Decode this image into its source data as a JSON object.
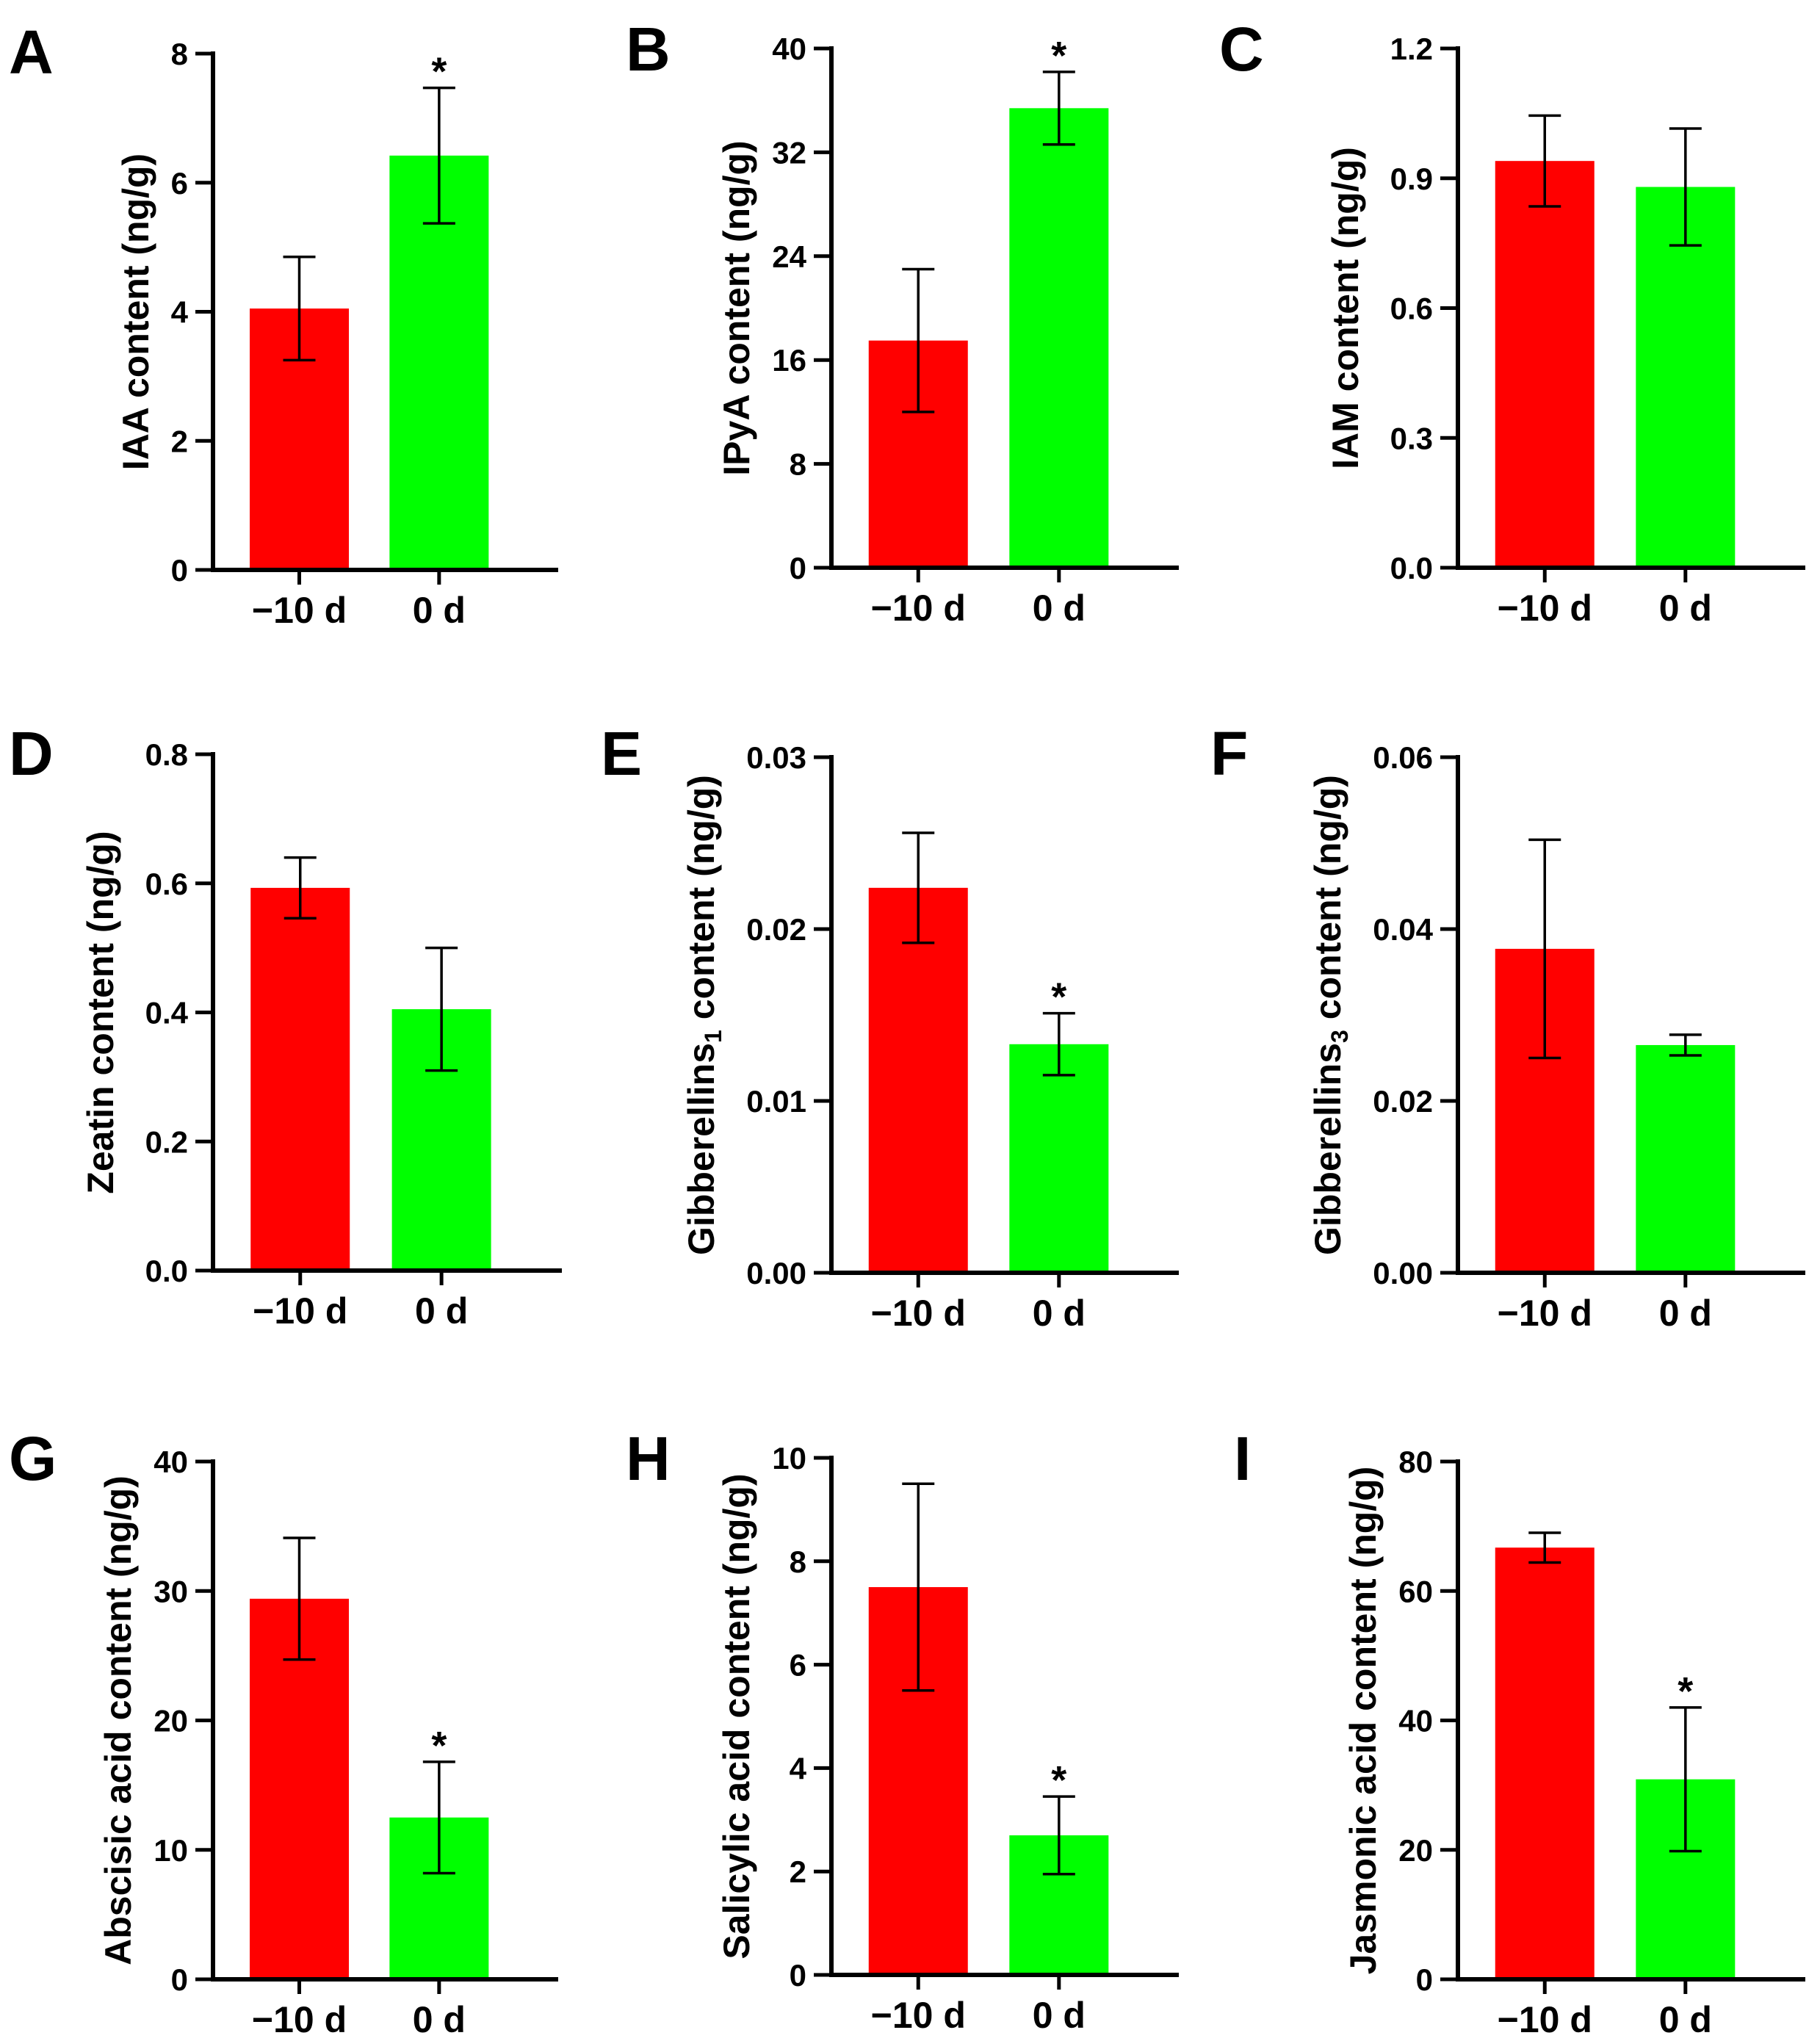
{
  "chart_data": [
    {
      "type": "bar",
      "panel": "A",
      "title": "",
      "xlabel": "",
      "ylabel": "IAA content (ng/g)",
      "categories": [
        "−10 d",
        "0 d"
      ],
      "values": [
        4.05,
        6.42
      ],
      "errors": [
        0.8,
        1.05
      ],
      "significant": [
        false,
        true
      ],
      "colors": [
        "#ff0000",
        "#00ff00"
      ],
      "ylim": [
        0,
        8
      ],
      "yticks": [
        0,
        2,
        4,
        6,
        8
      ],
      "ytick_labels": [
        "0",
        "2",
        "4",
        "6",
        "8"
      ]
    },
    {
      "type": "bar",
      "panel": "B",
      "title": "",
      "xlabel": "",
      "ylabel": "IPyA content (ng/g)",
      "categories": [
        "−10 d",
        "0 d"
      ],
      "values": [
        17.5,
        35.4
      ],
      "errors": [
        5.5,
        2.8
      ],
      "significant": [
        false,
        true
      ],
      "colors": [
        "#ff0000",
        "#00ff00"
      ],
      "ylim": [
        0,
        40
      ],
      "yticks": [
        0,
        8,
        16,
        24,
        32,
        40
      ],
      "ytick_labels": [
        "0",
        "8",
        "16",
        "24",
        "32",
        "40"
      ]
    },
    {
      "type": "bar",
      "panel": "C",
      "title": "",
      "xlabel": "",
      "ylabel": "IAM content (ng/g)",
      "categories": [
        "−10 d",
        "0 d"
      ],
      "values": [
        0.94,
        0.88
      ],
      "errors": [
        0.105,
        0.135
      ],
      "significant": [
        false,
        false
      ],
      "colors": [
        "#ff0000",
        "#00ff00"
      ],
      "ylim": [
        0,
        1.2
      ],
      "yticks": [
        0,
        0.3,
        0.6,
        0.9,
        1.2
      ],
      "ytick_labels": [
        "0.0",
        "0.3",
        "0.6",
        "0.9",
        "1.2"
      ]
    },
    {
      "type": "bar",
      "panel": "D",
      "title": "",
      "xlabel": "",
      "ylabel": "Zeatin content (ng/g)",
      "categories": [
        "−10 d",
        "0 d"
      ],
      "values": [
        0.593,
        0.405
      ],
      "errors": [
        0.047,
        0.095
      ],
      "significant": [
        false,
        false
      ],
      "colors": [
        "#ff0000",
        "#00ff00"
      ],
      "ylim": [
        0,
        0.8
      ],
      "yticks": [
        0,
        0.2,
        0.4,
        0.6,
        0.8
      ],
      "ytick_labels": [
        "0.0",
        "0.2",
        "0.4",
        "0.6",
        "0.8"
      ]
    },
    {
      "type": "bar",
      "panel": "E",
      "title": "",
      "xlabel": "",
      "ylabel": "Gibberellins",
      "ylabel_sub": "1",
      "ylabel_rest": " content (ng/g)",
      "categories": [
        "−10 d",
        "0 d"
      ],
      "values": [
        0.0224,
        0.0133
      ],
      "errors": [
        0.0032,
        0.0018
      ],
      "significant": [
        false,
        true
      ],
      "colors": [
        "#ff0000",
        "#00ff00"
      ],
      "ylim": [
        0,
        0.03
      ],
      "yticks": [
        0,
        0.01,
        0.02,
        0.03
      ],
      "ytick_labels": [
        "0.00",
        "0.01",
        "0.02",
        "0.03"
      ]
    },
    {
      "type": "bar",
      "panel": "F",
      "title": "",
      "xlabel": "",
      "ylabel": "Gibberellins",
      "ylabel_sub": "3",
      "ylabel_rest": " content (ng/g)",
      "categories": [
        "−10 d",
        "0 d"
      ],
      "values": [
        0.0377,
        0.0265
      ],
      "errors": [
        0.0127,
        0.0012
      ],
      "significant": [
        false,
        false
      ],
      "colors": [
        "#ff0000",
        "#00ff00"
      ],
      "ylim": [
        0,
        0.06
      ],
      "yticks": [
        0,
        0.02,
        0.04,
        0.06
      ],
      "ytick_labels": [
        "0.00",
        "0.02",
        "0.04",
        "0.06"
      ]
    },
    {
      "type": "bar",
      "panel": "G",
      "title": "",
      "xlabel": "",
      "ylabel": "Abscisic acid content (ng/g)",
      "categories": [
        "−10 d",
        "0 d"
      ],
      "values": [
        29.4,
        12.5
      ],
      "errors": [
        4.7,
        4.3
      ],
      "significant": [
        false,
        true
      ],
      "colors": [
        "#ff0000",
        "#00ff00"
      ],
      "ylim": [
        0,
        40
      ],
      "yticks": [
        0,
        10,
        20,
        30,
        40
      ],
      "ytick_labels": [
        "0",
        "10",
        "20",
        "30",
        "40"
      ]
    },
    {
      "type": "bar",
      "panel": "H",
      "title": "",
      "xlabel": "",
      "ylabel": "Salicylic acid content (ng/g)",
      "categories": [
        "−10 d",
        "0 d"
      ],
      "values": [
        7.5,
        2.7
      ],
      "errors": [
        2.0,
        0.75
      ],
      "significant": [
        false,
        true
      ],
      "colors": [
        "#ff0000",
        "#00ff00"
      ],
      "ylim": [
        0,
        10
      ],
      "yticks": [
        0,
        2,
        4,
        6,
        8,
        10
      ],
      "ytick_labels": [
        "0",
        "2",
        "4",
        "6",
        "8",
        "10"
      ]
    },
    {
      "type": "bar",
      "panel": "I",
      "title": "",
      "xlabel": "",
      "ylabel": "Jasmonic acid content (ng/g)",
      "categories": [
        "−10 d",
        "0 d"
      ],
      "values": [
        66.7,
        30.9
      ],
      "errors": [
        2.3,
        11.1
      ],
      "significant": [
        false,
        true
      ],
      "colors": [
        "#ff0000",
        "#00ff00"
      ],
      "ylim": [
        0,
        80
      ],
      "yticks": [
        0,
        20,
        40,
        60,
        80
      ],
      "ytick_labels": [
        "0",
        "20",
        "40",
        "60",
        "80"
      ]
    }
  ],
  "significance_marker": "*"
}
